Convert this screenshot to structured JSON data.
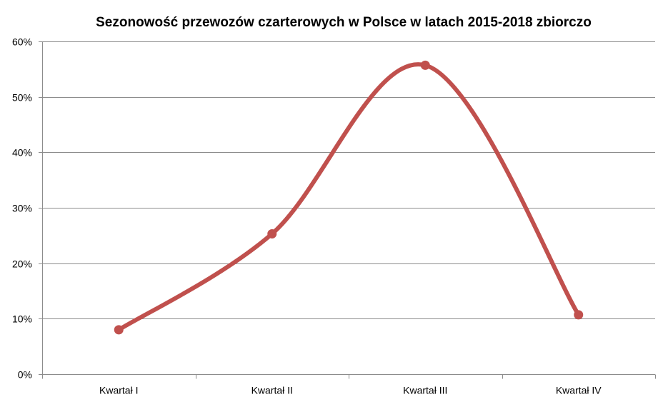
{
  "chart_data": {
    "type": "line",
    "title": "Sezonowość przewozów czarterowych w Polsce w latach 2015-2018 zbiorczo",
    "categories": [
      "Kwartał I",
      "Kwartał II",
      "Kwartał III",
      "Kwartał IV"
    ],
    "series": [
      {
        "values": [
          0.08,
          0.253,
          0.557,
          0.107
        ],
        "color": "#c0504d",
        "smooth": true,
        "markers": true
      }
    ],
    "ylim": [
      0,
      0.6
    ],
    "yticks": [
      0,
      0.1,
      0.2,
      0.3,
      0.4,
      0.5,
      0.6
    ],
    "ytick_labels": [
      "0%",
      "10%",
      "20%",
      "30%",
      "40%",
      "50%",
      "60%"
    ],
    "xlabel": "",
    "ylabel": "",
    "grid": true,
    "legend": "none"
  }
}
